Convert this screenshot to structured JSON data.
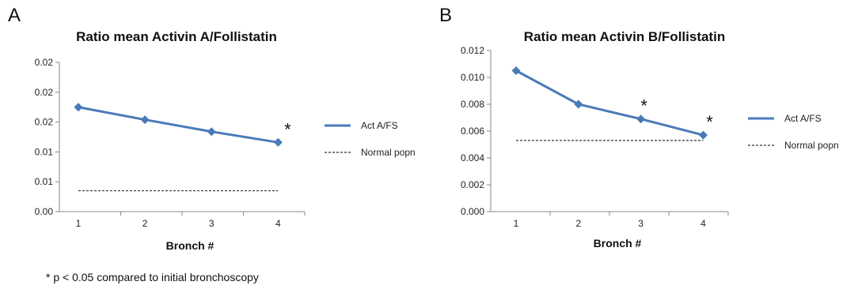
{
  "panels": [
    {
      "letter": "A"
    },
    {
      "letter": "B"
    }
  ],
  "footnote": "* p < 0.05 compared to initial bronchoscopy",
  "chart_data": [
    {
      "type": "line",
      "title": "Ratio mean Activin A/Follistatin",
      "xlabel": "Bronch #",
      "ylabel": "",
      "categories": [
        "1",
        "2",
        "3",
        "4"
      ],
      "y_ticks": [
        "0.00",
        "0.01",
        "0.01",
        "0.02",
        "0.02",
        "0.02"
      ],
      "ylim": [
        0,
        0.025
      ],
      "series": [
        {
          "name": "Act A/FS",
          "values": [
            0.0175,
            0.0154,
            0.0134,
            0.0116
          ],
          "color": "#4a7ab8",
          "marker": "diamond"
        },
        {
          "name": "Normal popn",
          "values": [
            0.0035,
            0.0035,
            0.0035,
            0.0035
          ],
          "color": "#333333",
          "style": "dashed",
          "marker": "none"
        }
      ],
      "annotations": [
        {
          "category": "4",
          "text": "*"
        }
      ],
      "legend": "right",
      "grid": false
    },
    {
      "type": "line",
      "title": "Ratio mean Activin B/Follistatin",
      "xlabel": "Bronch #",
      "ylabel": "",
      "categories": [
        "1",
        "2",
        "3",
        "4"
      ],
      "y_ticks": [
        "0.000",
        "0.002",
        "0.004",
        "0.006",
        "0.008",
        "0.010",
        "0.012"
      ],
      "ylim": [
        0,
        0.012
      ],
      "series": [
        {
          "name": "Act A/FS",
          "values": [
            0.0105,
            0.008,
            0.0069,
            0.0057
          ],
          "color": "#4a7ab8",
          "marker": "diamond"
        },
        {
          "name": "Normal popn",
          "values": [
            0.0053,
            0.0053,
            0.0053,
            0.0053
          ],
          "color": "#333333",
          "style": "dashed",
          "marker": "none"
        }
      ],
      "annotations": [
        {
          "category": "3",
          "text": "*"
        },
        {
          "category": "4",
          "text": "*"
        }
      ],
      "legend": "right",
      "grid": false
    }
  ]
}
